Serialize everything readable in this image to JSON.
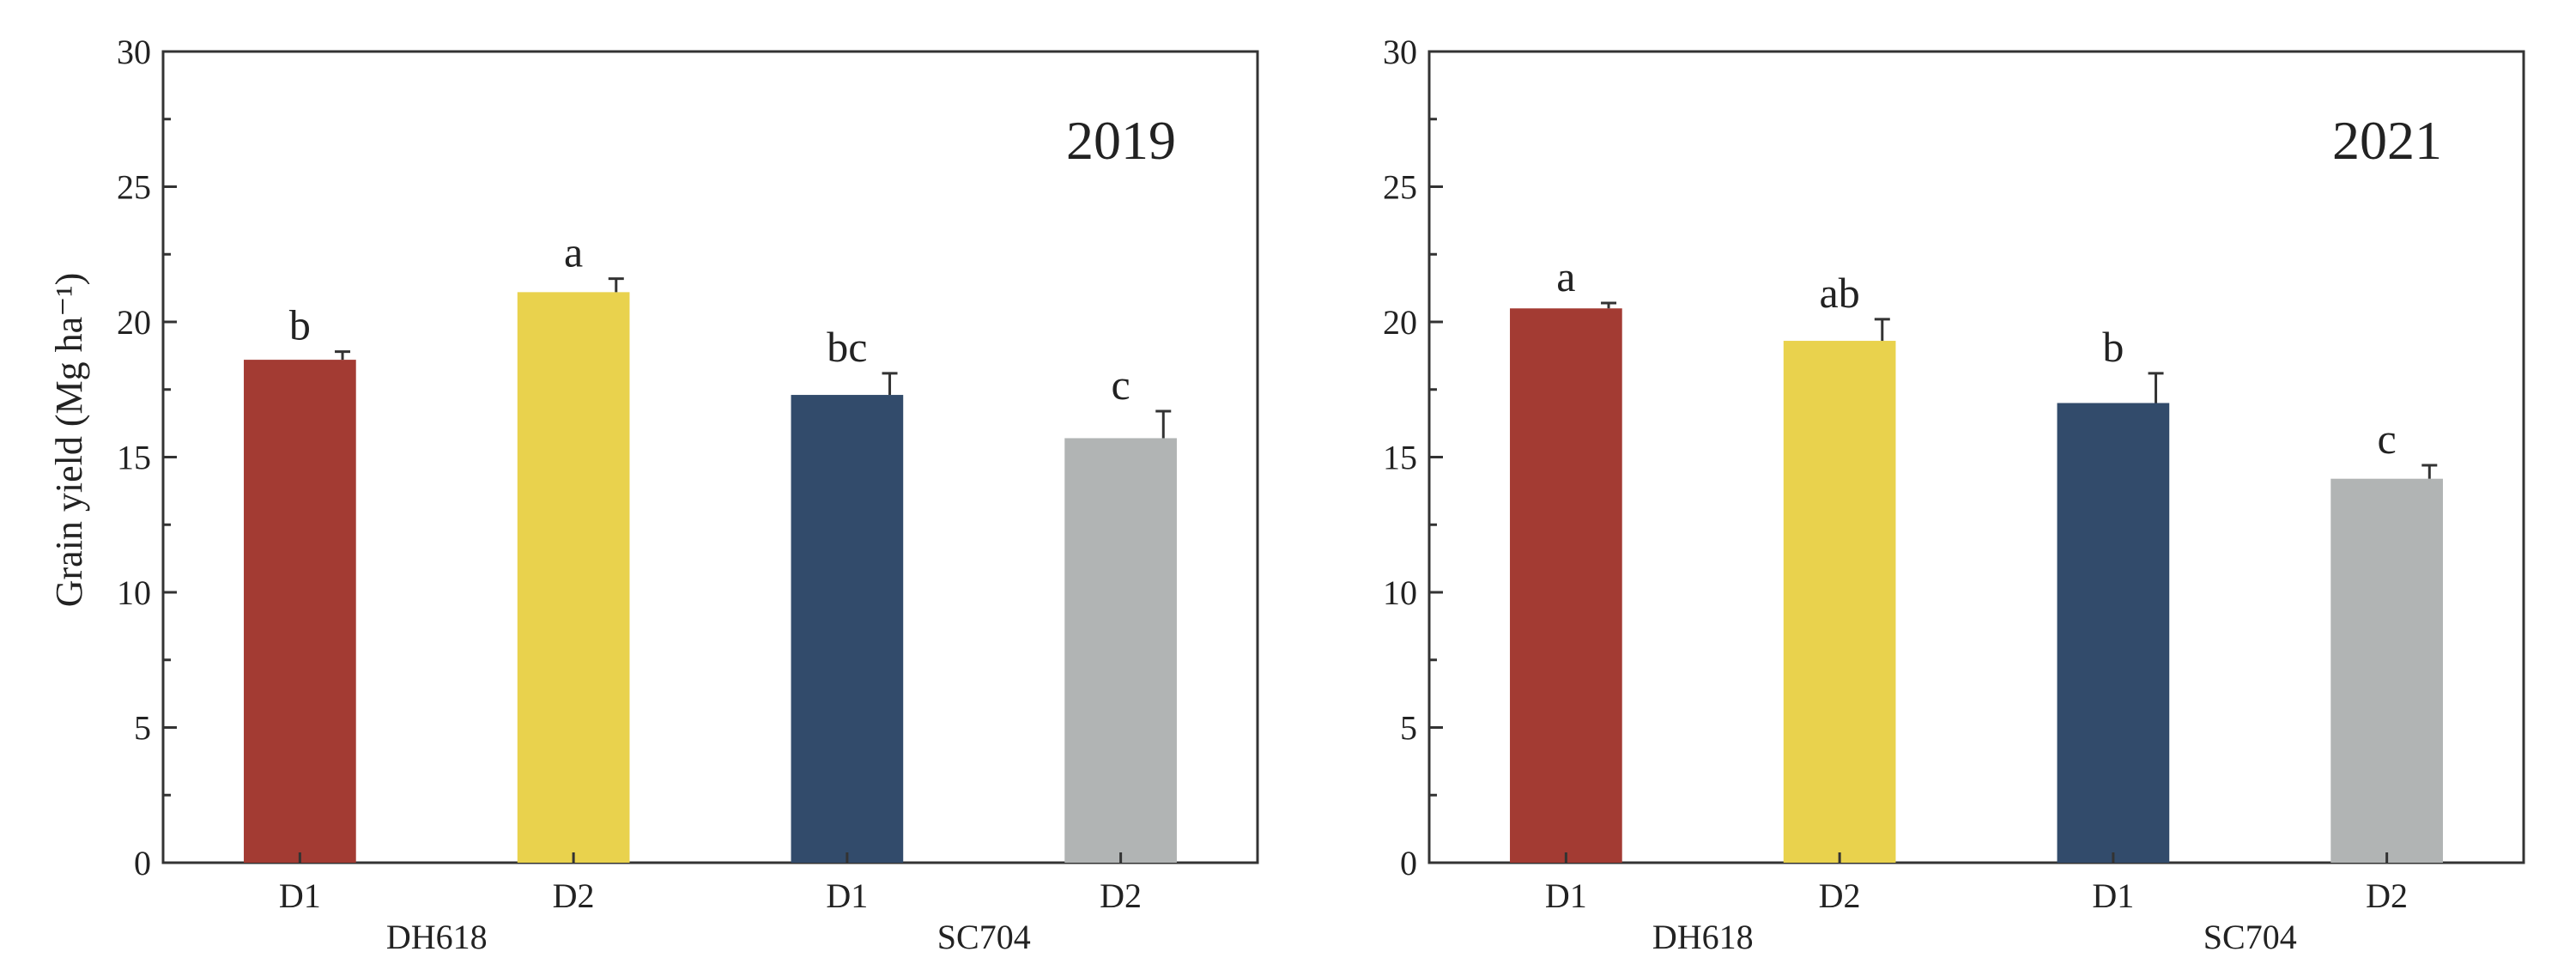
{
  "chart_data": [
    {
      "type": "bar",
      "title": "2019",
      "ylabel": "Grain yield (Mg ha⁻¹)",
      "xlabel": "",
      "ylim": [
        0,
        30
      ],
      "yticks": [
        0,
        5,
        10,
        15,
        20,
        25,
        30
      ],
      "categories": [
        "D1",
        "D2",
        "D1",
        "D2"
      ],
      "groups": [
        {
          "label": "DH618"
        },
        {
          "label": "SC704"
        }
      ],
      "values": [
        18.6,
        21.1,
        17.3,
        15.7
      ],
      "errors": [
        0.3,
        0.5,
        0.8,
        1.0
      ],
      "significance": [
        "b",
        "a",
        "bc",
        "c"
      ],
      "colors": [
        "#a33b33",
        "#e9d24d",
        "#324b6b",
        "#b1b4b4"
      ]
    },
    {
      "type": "bar",
      "title": "2021",
      "ylabel": "",
      "xlabel": "",
      "ylim": [
        0,
        30
      ],
      "yticks": [
        0,
        5,
        10,
        15,
        20,
        25,
        30
      ],
      "categories": [
        "D1",
        "D2",
        "D1",
        "D2"
      ],
      "groups": [
        {
          "label": "DH618"
        },
        {
          "label": "SC704"
        }
      ],
      "values": [
        20.5,
        19.3,
        17.0,
        14.2
      ],
      "errors": [
        0.2,
        0.8,
        1.1,
        0.5
      ],
      "significance": [
        "a",
        "ab",
        "b",
        "c"
      ],
      "colors": [
        "#a33b33",
        "#e9d24d",
        "#324b6b",
        "#b1b4b4"
      ]
    }
  ]
}
